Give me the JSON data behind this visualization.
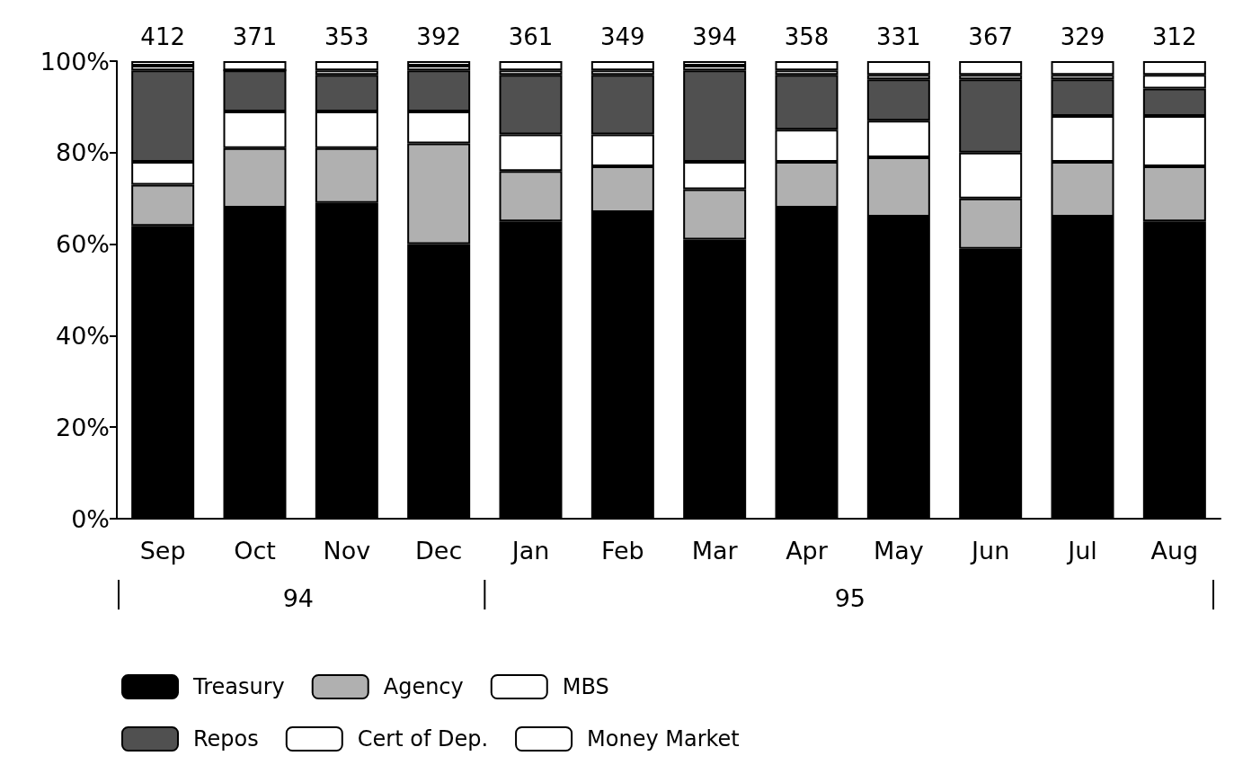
{
  "chart_data": {
    "type": "bar",
    "stacked": true,
    "categories": [
      "Sep",
      "Oct",
      "Nov",
      "Dec",
      "Jan",
      "Feb",
      "Mar",
      "Apr",
      "May",
      "Jun",
      "Jul",
      "Aug"
    ],
    "series": [
      {
        "name": "Treasury",
        "color": "#000000",
        "values": [
          64,
          68,
          69,
          60,
          65,
          67,
          61,
          68,
          66,
          59,
          66,
          65
        ]
      },
      {
        "name": "Agency",
        "color": "#b0b0b0",
        "values": [
          9,
          13,
          12,
          22,
          11,
          10,
          11,
          10,
          13,
          11,
          12,
          12
        ]
      },
      {
        "name": "MBS",
        "color": "#ffffff",
        "values": [
          5,
          8,
          8,
          7,
          8,
          7,
          6,
          7,
          8,
          10,
          10,
          11
        ]
      },
      {
        "name": "Repos",
        "color": "#505050",
        "values": [
          20,
          9,
          8,
          9,
          13,
          13,
          20,
          12,
          9,
          16,
          8,
          6
        ]
      },
      {
        "name": "Cert of Dep.",
        "color": "#ffffff",
        "values": [
          1,
          0,
          1,
          1,
          1,
          1,
          1,
          1,
          1,
          1,
          1,
          3
        ]
      },
      {
        "name": "Money Market",
        "color": "#ffffff",
        "values": [
          1,
          2,
          2,
          1,
          2,
          2,
          1,
          2,
          3,
          3,
          3,
          3
        ]
      }
    ],
    "annotations": [
      {
        "text": "412",
        "x": "Sep",
        "y": 100
      },
      {
        "text": "371",
        "x": "Oct",
        "y": 100
      },
      {
        "text": "353",
        "x": "Nov",
        "y": 100
      },
      {
        "text": "392",
        "x": "Dec",
        "y": 100
      },
      {
        "text": "361",
        "x": "Jan",
        "y": 100
      },
      {
        "text": "349",
        "x": "Feb",
        "y": 100
      },
      {
        "text": "394",
        "x": "Mar",
        "y": 100
      },
      {
        "text": "358",
        "x": "Apr",
        "y": 100
      },
      {
        "text": "331",
        "x": "May",
        "y": 100
      },
      {
        "text": "367",
        "x": "Jun",
        "y": 100
      },
      {
        "text": "329",
        "x": "Jul",
        "y": 100
      },
      {
        "text": "312",
        "x": "Aug",
        "y": 100
      },
      "94",
      "95"
    ],
    "ylim": [
      0,
      100
    ],
    "yticks": [
      {
        "value": 0,
        "label": "0%"
      },
      {
        "value": 20,
        "label": "20%"
      },
      {
        "value": 40,
        "label": "40%"
      },
      {
        "value": 60,
        "label": "60%"
      },
      {
        "value": 80,
        "label": "80%"
      },
      {
        "value": 100,
        "label": "100%"
      }
    ],
    "grid": false,
    "legend": "bottom"
  }
}
